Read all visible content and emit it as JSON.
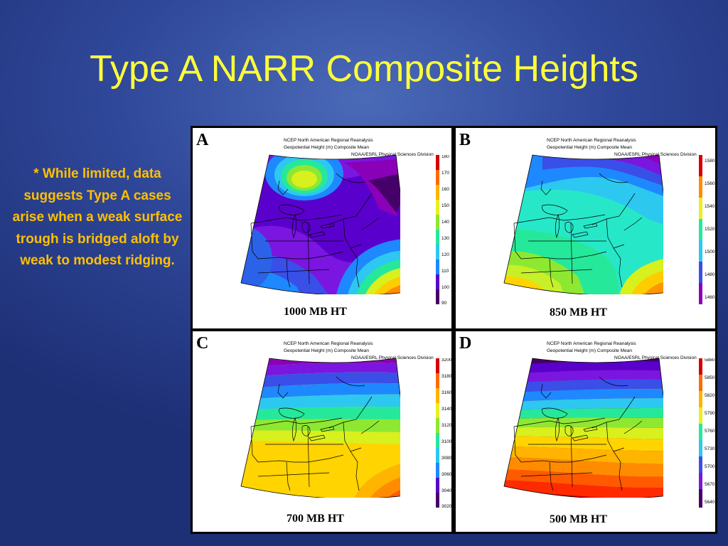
{
  "slide": {
    "title": "Type A NARR Composite Heights",
    "note": "* While limited, data suggests Type A cases arise when a weak surface trough is bridged aloft by weak to modest ridging."
  },
  "header": {
    "line1": "NCEP North American Regional Reanalysis",
    "line2": "Geopotential Height (m) Composite Mean",
    "line3": "NOAA/ESRL Physical Sciences Division"
  },
  "colors": {
    "slide_background": "#30489a",
    "title": "#ffff3a",
    "note": "#ffc000"
  },
  "panels": [
    {
      "letter": "A",
      "caption": "1000 MB HT",
      "levels": [
        "180",
        "170",
        "160",
        "150",
        "140",
        "130",
        "120",
        "110",
        "100",
        "90"
      ]
    },
    {
      "letter": "B",
      "caption": "850 MB HT",
      "levels": [
        "1580",
        "1560",
        "1540",
        "1520",
        "1500",
        "1480",
        "1460"
      ]
    },
    {
      "letter": "C",
      "caption": "700 MB HT",
      "levels": [
        "3200",
        "3180",
        "3160",
        "3140",
        "3120",
        "3100",
        "3080",
        "3060",
        "3040",
        "3020"
      ]
    },
    {
      "letter": "D",
      "caption": "500 MB HT",
      "levels": [
        "5880",
        "5850",
        "5820",
        "5790",
        "5760",
        "5730",
        "5700",
        "5670",
        "5640"
      ]
    }
  ]
}
